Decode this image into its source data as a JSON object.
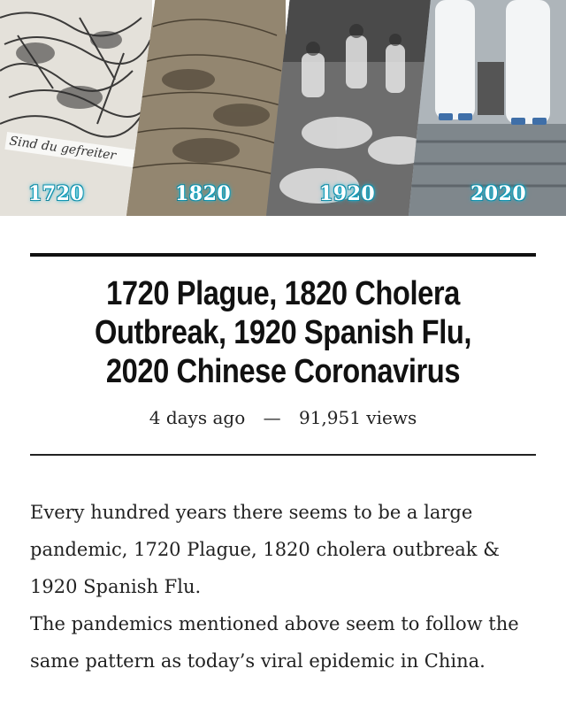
{
  "banner": {
    "panels": [
      {
        "year": "1720",
        "image": "historical-engraving-plague"
      },
      {
        "year": "1820",
        "image": "historical-engraving-cholera"
      },
      {
        "year": "1920",
        "image": "photo-spanish-flu-ward"
      },
      {
        "year": "2020",
        "image": "photo-hazmat-workers"
      }
    ],
    "engraving_caption": "Sind du gefreiter"
  },
  "article": {
    "title": "1720 Plague, 1820 Cholera Outbreak, 1920 Spanish Flu, 2020 Chinese Coronavirus",
    "posted": "4 days ago",
    "separator": "—",
    "views": "91,951 views",
    "paragraphs": [
      "Every hundred years there seems to be a large pandemic, 1720 Plague, 1820 cholera outbreak & 1920 Spanish Flu.",
      "The pandemics mentioned above seem to follow the same pattern as today’s viral epidemic in China."
    ]
  }
}
